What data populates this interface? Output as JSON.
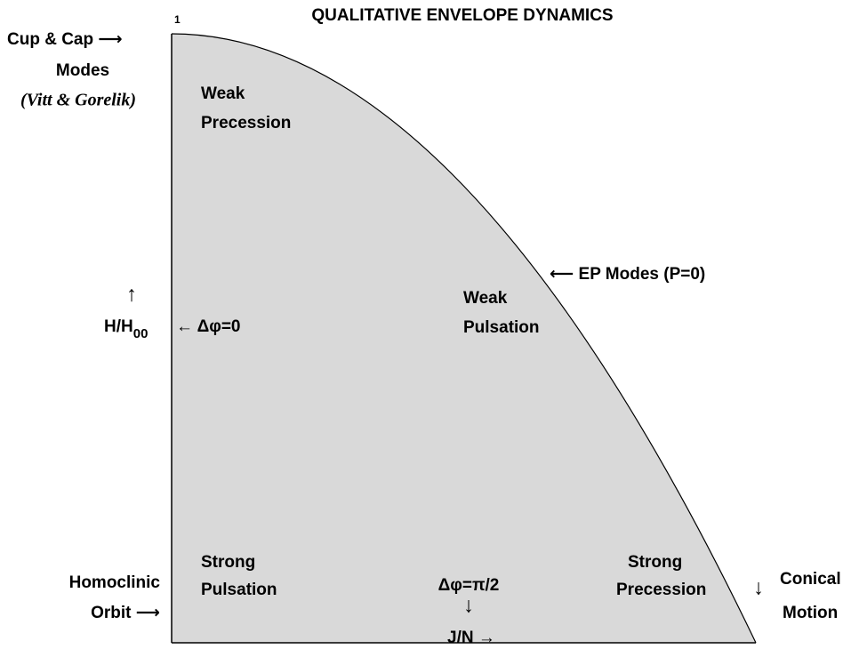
{
  "title": "QUALITATIVE ENVELOPE DYNAMICS",
  "axes": {
    "x_label": "J/N →",
    "y_arrow": "↑",
    "y_label": {
      "main": "H/H",
      "sub": "00"
    },
    "origin": "0",
    "x_max": "1",
    "y_max": "1"
  },
  "regions": [
    {
      "lines": [
        "Weak",
        "Precession"
      ]
    },
    {
      "lines": [
        "Weak",
        "Pulsation"
      ]
    },
    {
      "lines": [
        "Strong",
        "Pulsation"
      ]
    },
    {
      "lines": [
        "Strong",
        "Precession"
      ]
    }
  ],
  "annotations": {
    "cup_cap": {
      "lines": [
        "Cup & Cap ⟶",
        "Modes"
      ],
      "citation": "(Vitt & Gorelik)"
    },
    "delta_phi_zero": "← Δφ=0",
    "ep_modes": "⟵ EP Modes (P=0)",
    "delta_phi_half_pi": {
      "text": "Δφ=π/2",
      "arrow": "↓"
    },
    "homoclinic": {
      "lines": [
        "Homoclinic",
        "Orbit ⟶"
      ]
    },
    "conical": {
      "arrow": "↓",
      "lines": [
        "Conical",
        "Motion"
      ]
    }
  }
}
